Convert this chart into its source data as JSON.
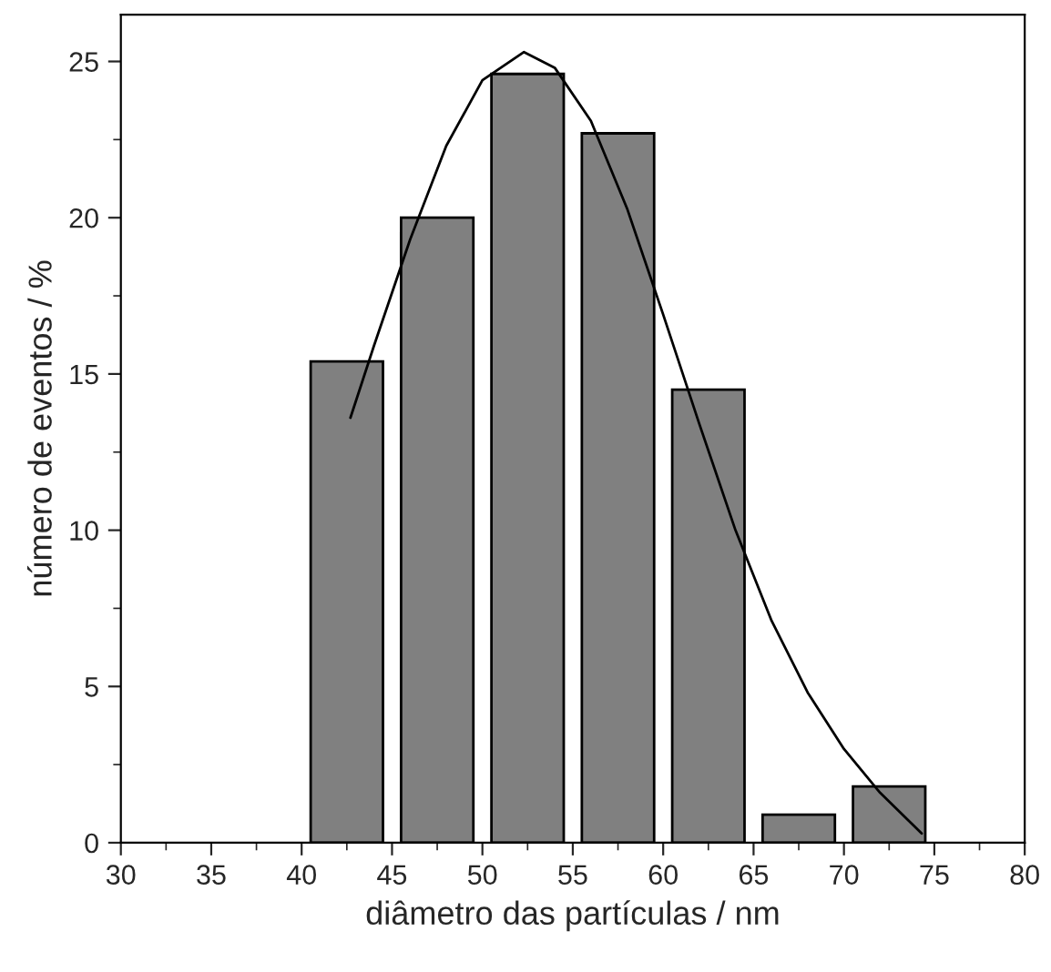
{
  "chart_data": {
    "type": "histogram",
    "xlabel": "diâmetro das partículas / nm",
    "ylabel": "número de eventos / %",
    "bins": [
      40,
      45,
      50,
      55,
      60,
      65,
      70,
      75
    ],
    "values": [
      15.4,
      20.0,
      24.6,
      22.7,
      14.5,
      0.9,
      1.8
    ],
    "color": "#808080",
    "series": [
      {
        "type": "line",
        "color": "#000000",
        "x": [
          42.7,
          44,
          46,
          48,
          50,
          52.3,
          54,
          56,
          58,
          60,
          62,
          64,
          66,
          68,
          70,
          72,
          74.3
        ],
        "values": [
          13.6,
          15.9,
          19.3,
          22.3,
          24.4,
          25.3,
          24.8,
          23.1,
          20.3,
          16.9,
          13.4,
          10.0,
          7.1,
          4.8,
          3.0,
          1.6,
          0.3
        ]
      }
    ],
    "xlim": [
      30,
      80
    ],
    "xticks": [
      30,
      35,
      40,
      45,
      50,
      55,
      60,
      65,
      70,
      75,
      80
    ],
    "ylim": [
      0,
      26.5
    ],
    "yticks": [
      0,
      5,
      10,
      15,
      20,
      25
    ],
    "grid": false
  }
}
